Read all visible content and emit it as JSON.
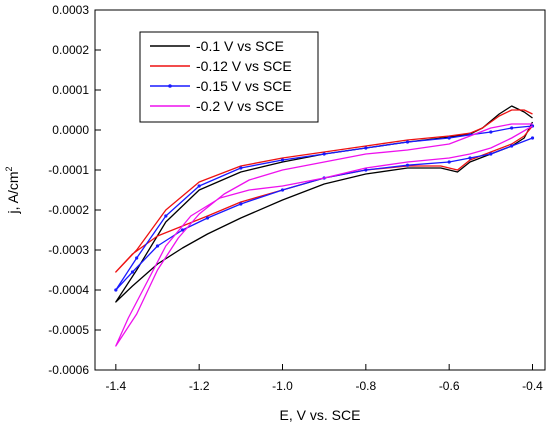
{
  "chart_data": {
    "type": "line",
    "xlabel": "E, V vs. SCE",
    "ylabel_main": "j, A/cm",
    "ylabel_sup": "2",
    "xlim": [
      -1.45,
      -0.37
    ],
    "ylim": [
      -0.0006,
      0.0003
    ],
    "xticks": [
      -1.4,
      -1.2,
      -1.0,
      -0.8,
      -0.6,
      -0.4
    ],
    "xtick_labels": [
      "-1.4",
      "-1.2",
      "-1.0",
      "-0.8",
      "-0.6",
      "-0.4"
    ],
    "yticks": [
      0.0003,
      0.0002,
      0.0001,
      0.0,
      -0.0001,
      -0.0002,
      -0.0003,
      -0.0004,
      -0.0005,
      -0.0006
    ],
    "ytick_labels": [
      "0.0003",
      "0.0002",
      "0.0001",
      "0.0000",
      "-0.0001",
      "-0.0002",
      "-0.0003",
      "-0.0004",
      "-0.0005",
      "-0.0006"
    ],
    "legend_position": "top-left",
    "series": [
      {
        "name": "-0.1 V vs SCE",
        "color": "#000000",
        "x": [
          -0.4,
          -0.42,
          -0.45,
          -0.48,
          -0.52,
          -0.55,
          -0.6,
          -0.7,
          -0.8,
          -0.9,
          -1.0,
          -1.1,
          -1.2,
          -1.28,
          -1.35,
          -1.4,
          -1.36,
          -1.3,
          -1.24,
          -1.18,
          -1.1,
          -1.0,
          -0.9,
          -0.8,
          -0.7,
          -0.62,
          -0.58,
          -0.55,
          -0.5,
          -0.45,
          -0.42,
          -0.4
        ],
        "y": [
          3e-05,
          4.5e-05,
          6e-05,
          4e-05,
          5e-06,
          -1e-05,
          -1.8e-05,
          -3e-05,
          -4.5e-05,
          -6e-05,
          -8e-05,
          -0.000105,
          -0.00015,
          -0.00023,
          -0.00035,
          -0.00043,
          -0.00039,
          -0.000335,
          -0.000295,
          -0.00026,
          -0.00022,
          -0.000175,
          -0.000135,
          -0.00011,
          -9.5e-05,
          -9.5e-05,
          -0.000105,
          -8e-05,
          -6e-05,
          -4e-05,
          -2e-05,
          2e-05
        ]
      },
      {
        "name": "-0.12 V vs SCE",
        "color": "#ee1111",
        "x": [
          -0.4,
          -0.42,
          -0.45,
          -0.48,
          -0.52,
          -0.55,
          -0.6,
          -0.7,
          -0.8,
          -0.9,
          -1.0,
          -1.1,
          -1.2,
          -1.28,
          -1.35,
          -1.4,
          -1.36,
          -1.3,
          -1.24,
          -1.18,
          -1.1,
          -1.0,
          -0.9,
          -0.8,
          -0.7,
          -0.62,
          -0.58,
          -0.55,
          -0.5,
          -0.45,
          -0.42,
          -0.4
        ],
        "y": [
          4e-05,
          5e-05,
          5e-05,
          3.5e-05,
          5e-06,
          -8e-06,
          -1.5e-05,
          -2.5e-05,
          -4e-05,
          -5.5e-05,
          -7e-05,
          -9e-05,
          -0.00013,
          -0.0002,
          -0.0003,
          -0.000355,
          -0.00031,
          -0.000265,
          -0.00024,
          -0.000215,
          -0.00018,
          -0.00015,
          -0.00012,
          -0.0001,
          -9e-05,
          -9e-05,
          -0.0001,
          -7.5e-05,
          -5.5e-05,
          -3.5e-05,
          -1.5e-05,
          1e-05
        ]
      },
      {
        "name": "-0.15 V vs SCE",
        "color": "#1a1aff",
        "x": [
          -0.4,
          -0.45,
          -0.5,
          -0.55,
          -0.6,
          -0.7,
          -0.8,
          -0.9,
          -1.0,
          -1.1,
          -1.2,
          -1.28,
          -1.35,
          -1.4,
          -1.36,
          -1.3,
          -1.24,
          -1.18,
          -1.1,
          -1.0,
          -0.9,
          -0.8,
          -0.7,
          -0.6,
          -0.55,
          -0.5,
          -0.45,
          -0.4
        ],
        "y": [
          1e-05,
          5e-06,
          -5e-06,
          -1.2e-05,
          -2e-05,
          -3e-05,
          -4.5e-05,
          -6e-05,
          -7.5e-05,
          -9.5e-05,
          -0.00014,
          -0.000215,
          -0.00032,
          -0.0004,
          -0.000355,
          -0.00029,
          -0.00025,
          -0.00022,
          -0.000185,
          -0.00015,
          -0.00012,
          -0.0001,
          -8.8e-05,
          -8e-05,
          -7e-05,
          -6e-05,
          -4e-05,
          -2e-05
        ]
      },
      {
        "name": "-0.2 V vs SCE",
        "color": "#ee11ee",
        "x": [
          -0.4,
          -0.45,
          -0.5,
          -0.55,
          -0.6,
          -0.7,
          -0.8,
          -0.9,
          -1.0,
          -1.08,
          -1.14,
          -1.2,
          -1.25,
          -1.3,
          -1.35,
          -1.4,
          -1.37,
          -1.33,
          -1.28,
          -1.22,
          -1.15,
          -1.08,
          -1.0,
          -0.9,
          -0.8,
          -0.7,
          -0.6,
          -0.55,
          -0.5,
          -0.45,
          -0.4
        ],
        "y": [
          1.5e-05,
          1.5e-05,
          5e-06,
          -1.5e-05,
          -3.5e-05,
          -5e-05,
          -6e-05,
          -8e-05,
          -0.0001,
          -0.000125,
          -0.00016,
          -0.00021,
          -0.00027,
          -0.00035,
          -0.00046,
          -0.00054,
          -0.00047,
          -0.00039,
          -0.00029,
          -0.000215,
          -0.00017,
          -0.00015,
          -0.00014,
          -0.00012,
          -9.5e-05,
          -8e-05,
          -7e-05,
          -6e-05,
          -4.5e-05,
          -2e-05,
          1e-05
        ]
      }
    ]
  }
}
